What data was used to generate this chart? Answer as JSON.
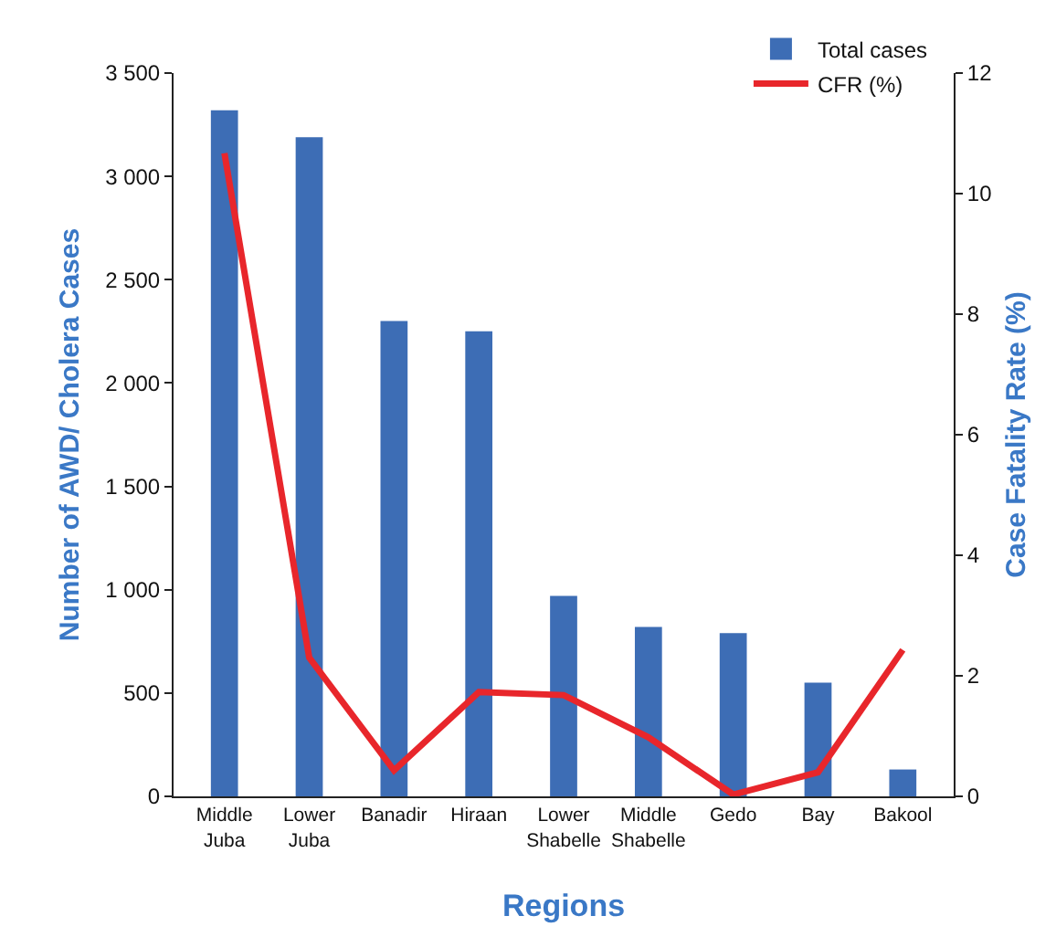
{
  "chart_data": {
    "type": "bar",
    "xlabel": "Regions",
    "ylabel": "Number of AWD/ Cholera Cases",
    "y2label": "Case Fatality Rate (%)",
    "categories": [
      "Middle Juba",
      "Lower Juba",
      "Banadir",
      "Hiraan",
      "Lower Shabelle",
      "Middle Shabelle",
      "Gedo",
      "Bay",
      "Bakool"
    ],
    "series": [
      {
        "name": "Total cases",
        "color": "#3d6db5",
        "values": [
          3320,
          3190,
          2300,
          2250,
          970,
          820,
          790,
          550,
          130
        ]
      },
      {
        "name": "CFR (%)",
        "type": "line",
        "axis": "y2",
        "color": "#e8262b",
        "values": [
          10.67,
          2.3,
          0.43,
          1.73,
          1.68,
          0.98,
          0.03,
          0.4,
          2.43
        ]
      }
    ],
    "ylim": [
      0,
      3500
    ],
    "yticks": [
      0,
      {
        "value": 500,
        "label": "500"
      },
      {
        "value": 1000,
        "label": "1 000"
      },
      {
        "value": 1500,
        "label": "1 500"
      },
      {
        "value": 2000,
        "label": "2 000"
      },
      {
        "value": 2500,
        "label": "2 500"
      },
      {
        "value": 3000,
        "label": "3 000"
      },
      {
        "value": 3500,
        "label": "3 500"
      }
    ],
    "y2lim": [
      0,
      12
    ],
    "y2ticks": [
      0,
      2,
      4,
      6,
      8,
      10,
      12
    ],
    "grid": false,
    "legend": "top right",
    "marker": "none",
    "line_style": "solid"
  }
}
